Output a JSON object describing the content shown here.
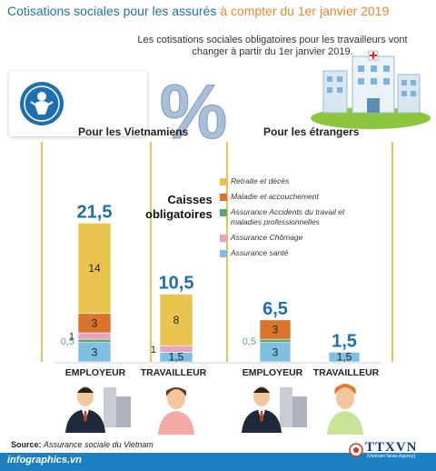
{
  "title": {
    "part1": "Cotisations sociales pour les assurés ",
    "part2": "à compter du 1er janvier 2019"
  },
  "subtitle": "Les cotisations sociales obligatoires pour les travailleurs vont changer à partir du 1er janvier 2019.",
  "sections": {
    "vietnamiens": "Pour les Vietnamiens",
    "etrangers": "Pour les étrangers"
  },
  "caisses_label": [
    "Caisses",
    "obligatoires"
  ],
  "percent_symbol": "%",
  "colors": {
    "retraite": "#e8c44e",
    "maladie": "#d9742a",
    "accidents": "#5aa872",
    "chomage": "#e7a3bf",
    "sante": "#7fc0e2",
    "total_label": "#1d6fb0",
    "title_blue": "#1d6fb0",
    "title_orange": "#e8882a"
  },
  "chart_data": {
    "type": "bar",
    "stacked": true,
    "groups": [
      "Pour les Vietnamiens",
      "Pour les étrangers"
    ],
    "categories": [
      "EMPLOYEUR",
      "TRAVAILLEUR",
      "EMPLOYEUR",
      "TRAVAILLEUR"
    ],
    "totals": [
      "21,5",
      "10,5",
      "6,5",
      "1,5"
    ],
    "series": [
      {
        "name": "Assurance santé",
        "color_key": "sante",
        "values": [
          3,
          1.5,
          3,
          1.5
        ],
        "labels": [
          "3",
          "1,5",
          "3",
          "1,5"
        ]
      },
      {
        "name": "Assurance Accidents du travail et maladies professionnelles",
        "color_key": "accidents",
        "values": [
          0.5,
          0,
          0.5,
          0
        ],
        "labels": [
          "0,5",
          "",
          "0,5",
          ""
        ]
      },
      {
        "name": "Assurance Chômage",
        "color_key": "chomage",
        "values": [
          1,
          1,
          0,
          0
        ],
        "labels": [
          "1",
          "1",
          "",
          ""
        ]
      },
      {
        "name": "Maladie et accouchement",
        "color_key": "maladie",
        "values": [
          3,
          0,
          3,
          0
        ],
        "labels": [
          "3",
          "",
          "3",
          ""
        ]
      },
      {
        "name": "Retraite et décès",
        "color_key": "retraite",
        "values": [
          14,
          8,
          0,
          0
        ],
        "labels": [
          "14",
          "8",
          "",
          ""
        ]
      }
    ],
    "legend_order": [
      {
        "name": "Retraite et décès",
        "color_key": "retraite"
      },
      {
        "name": "Maladie et accouchement",
        "color_key": "maladie"
      },
      {
        "name": "Assurance Accidents du travail et maladies professionnelles",
        "color_key": "accidents"
      },
      {
        "name": "Assurance Chômage",
        "color_key": "chomage"
      },
      {
        "name": "Assurance santé",
        "color_key": "sante"
      }
    ]
  },
  "source": {
    "label": "Source:",
    "text": "Assurance sociale du Vietnam"
  },
  "footer": "infographics.vn",
  "agency": {
    "name": "TTXVN",
    "sub": "(Vietnam News Agency)"
  }
}
